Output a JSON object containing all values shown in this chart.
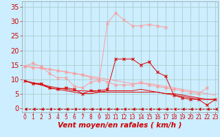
{
  "title": "",
  "xlabel": "Vent moyen/en rafales ( km/h )",
  "background_color": "#cceeff",
  "grid_color": "#aacccc",
  "x_values": [
    0,
    1,
    2,
    3,
    4,
    5,
    6,
    7,
    8,
    9,
    10,
    11,
    12,
    13,
    14,
    15,
    16,
    17,
    18,
    19,
    20,
    21,
    22,
    23
  ],
  "series": [
    {
      "name": "dark_main",
      "color": "#dd0000",
      "marker": "x",
      "y": [
        9.5,
        8.5,
        8.5,
        7.0,
        6.5,
        7.0,
        6.5,
        5.0,
        6.0,
        6.0,
        6.5,
        17.0,
        17.0,
        17.0,
        15.0,
        16.0,
        12.5,
        11.0,
        4.5,
        3.5,
        3.0,
        3.0,
        1.0,
        3.0
      ]
    },
    {
      "name": "dark_lower1",
      "color": "#dd0000",
      "marker": null,
      "y": [
        9.5,
        8.5,
        8.0,
        7.0,
        6.5,
        6.0,
        5.5,
        5.0,
        5.0,
        5.5,
        6.0,
        6.0,
        6.0,
        6.0,
        6.5,
        6.0,
        5.5,
        5.0,
        4.5,
        4.0,
        3.5,
        3.0,
        3.0,
        3.0
      ]
    },
    {
      "name": "dark_lower2",
      "color": "#dd0000",
      "marker": null,
      "y": [
        9.5,
        8.8,
        8.3,
        7.5,
        7.0,
        6.5,
        6.0,
        6.0,
        5.8,
        5.5,
        5.5,
        5.5,
        5.5,
        5.5,
        5.5,
        5.5,
        5.5,
        5.0,
        5.0,
        4.5,
        4.0,
        3.5,
        3.0,
        3.0
      ]
    },
    {
      "name": "light_top",
      "color": "#ff9999",
      "marker": "x",
      "y": [
        14.5,
        15.5,
        14.5,
        12.0,
        10.5,
        10.5,
        7.5,
        7.0,
        9.0,
        9.5,
        29.5,
        33.0,
        30.5,
        28.5,
        28.5,
        29.0,
        28.5,
        28.0,
        null,
        null,
        null,
        null,
        null,
        null
      ]
    },
    {
      "name": "light_mid",
      "color": "#ff9999",
      "marker": "x",
      "y": [
        14.5,
        14.0,
        14.0,
        13.5,
        13.0,
        12.5,
        12.0,
        11.5,
        10.5,
        10.0,
        9.0,
        8.0,
        8.0,
        8.0,
        9.0,
        8.0,
        7.5,
        7.0,
        6.5,
        6.0,
        5.5,
        5.0,
        7.0,
        null
      ]
    },
    {
      "name": "light_flat",
      "color": "#ff9999",
      "marker": null,
      "y": [
        14.5,
        14.2,
        13.8,
        13.5,
        13.0,
        12.5,
        12.0,
        11.5,
        11.0,
        10.5,
        10.0,
        9.5,
        9.0,
        8.5,
        8.5,
        8.5,
        8.0,
        7.5,
        7.0,
        6.5,
        6.0,
        5.5,
        5.0,
        4.5
      ]
    },
    {
      "name": "dashed_bottom",
      "color": "#cc0000",
      "marker": 4,
      "dashed": true,
      "y": [
        -0.3,
        -0.3,
        -0.3,
        -0.3,
        -0.3,
        -0.3,
        -0.3,
        -0.3,
        -0.3,
        -0.3,
        -0.3,
        -0.3,
        -0.3,
        -0.3,
        -0.3,
        -0.3,
        -0.3,
        -0.3,
        -0.3,
        -0.3,
        -0.3,
        -0.3,
        -0.3,
        -0.3
      ]
    }
  ],
  "xlim": [
    -0.3,
    23.3
  ],
  "ylim": [
    -1.5,
    37
  ],
  "yticks": [
    0,
    5,
    10,
    15,
    20,
    25,
    30,
    35
  ],
  "xticks": [
    0,
    1,
    2,
    3,
    4,
    5,
    6,
    7,
    8,
    9,
    10,
    11,
    12,
    13,
    14,
    15,
    16,
    17,
    18,
    19,
    20,
    21,
    22,
    23
  ],
  "tick_color": "#cc0000",
  "label_color": "#cc0000",
  "xlabel_fontsize": 7.5,
  "ytick_fontsize": 7,
  "xtick_fontsize": 5.5
}
